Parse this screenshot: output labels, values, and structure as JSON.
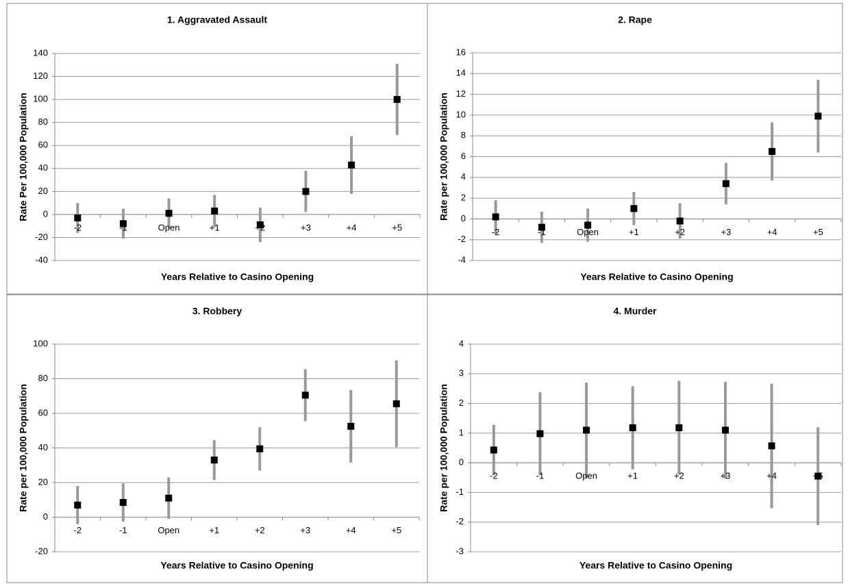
{
  "chart_data": [
    {
      "type": "errorbar",
      "title": "1. Aggravated Assault",
      "x_label": "Years Relative to Casino Opening",
      "y_label": "Rate Per 100,000 Population",
      "categories": [
        "-2",
        "-1",
        "Open",
        "+1",
        "+2",
        "+3",
        "+4",
        "+5"
      ],
      "values": [
        -3,
        -8,
        1,
        3,
        -9,
        20,
        43,
        100
      ],
      "errors": [
        13,
        13,
        13,
        14,
        15,
        18,
        25,
        31
      ],
      "color": "#000000",
      "error_color": "#999999",
      "ylim": [
        -40,
        140
      ],
      "yticks": [
        -40,
        -20,
        0,
        20,
        40,
        60,
        80,
        100,
        120,
        140
      ],
      "grid": true
    },
    {
      "type": "errorbar",
      "title": "2. Rape",
      "x_label": "Years Relative to Casino Opening",
      "y_label": "Rate per 100,000 Population",
      "categories": [
        "-2",
        "-1",
        "Open",
        "+1",
        "+2",
        "+3",
        "+4",
        "+5"
      ],
      "values": [
        0.2,
        -0.8,
        -0.6,
        1.0,
        -0.2,
        3.4,
        6.5,
        9.9
      ],
      "errors": [
        1.6,
        1.5,
        1.6,
        1.6,
        1.7,
        2.0,
        2.8,
        3.5
      ],
      "color": "#000000",
      "error_color": "#999999",
      "ylim": [
        -4,
        16
      ],
      "yticks": [
        -4,
        -2,
        0,
        2,
        4,
        6,
        8,
        10,
        12,
        14,
        16
      ],
      "grid": true
    },
    {
      "type": "errorbar",
      "title": "3. Robbery",
      "x_label": "Years Relative to Casino Opening",
      "y_label": "Rate per 100,000 Population",
      "categories": [
        "-2",
        "-1",
        "Open",
        "+1",
        "+2",
        "+3",
        "+4",
        "+5"
      ],
      "values": [
        7,
        8.5,
        11,
        33,
        39.5,
        70.5,
        52.5,
        65.5
      ],
      "errors": [
        11,
        11,
        12,
        11.5,
        12.5,
        15,
        21,
        25
      ],
      "color": "#000000",
      "error_color": "#999999",
      "ylim": [
        -20,
        100
      ],
      "yticks": [
        -20,
        0,
        20,
        40,
        60,
        80,
        100
      ],
      "grid": true
    },
    {
      "type": "errorbar",
      "title": "4. Murder",
      "x_label": "Years Relative to Casino Opening",
      "y_label": "Rate per 100,000 Population",
      "categories": [
        "-2",
        "-1",
        "Open",
        "+1",
        "+2",
        "+3",
        "+4",
        "+5"
      ],
      "values": [
        0.43,
        0.98,
        1.1,
        1.18,
        1.18,
        1.1,
        0.57,
        -0.45
      ],
      "errors": [
        0.85,
        1.4,
        1.6,
        1.4,
        1.58,
        1.63,
        2.1,
        1.65
      ],
      "color": "#000000",
      "error_color": "#999999",
      "ylim": [
        -3,
        4
      ],
      "yticks": [
        -3,
        -2,
        -1,
        0,
        1,
        2,
        3,
        4
      ],
      "grid": true
    }
  ]
}
